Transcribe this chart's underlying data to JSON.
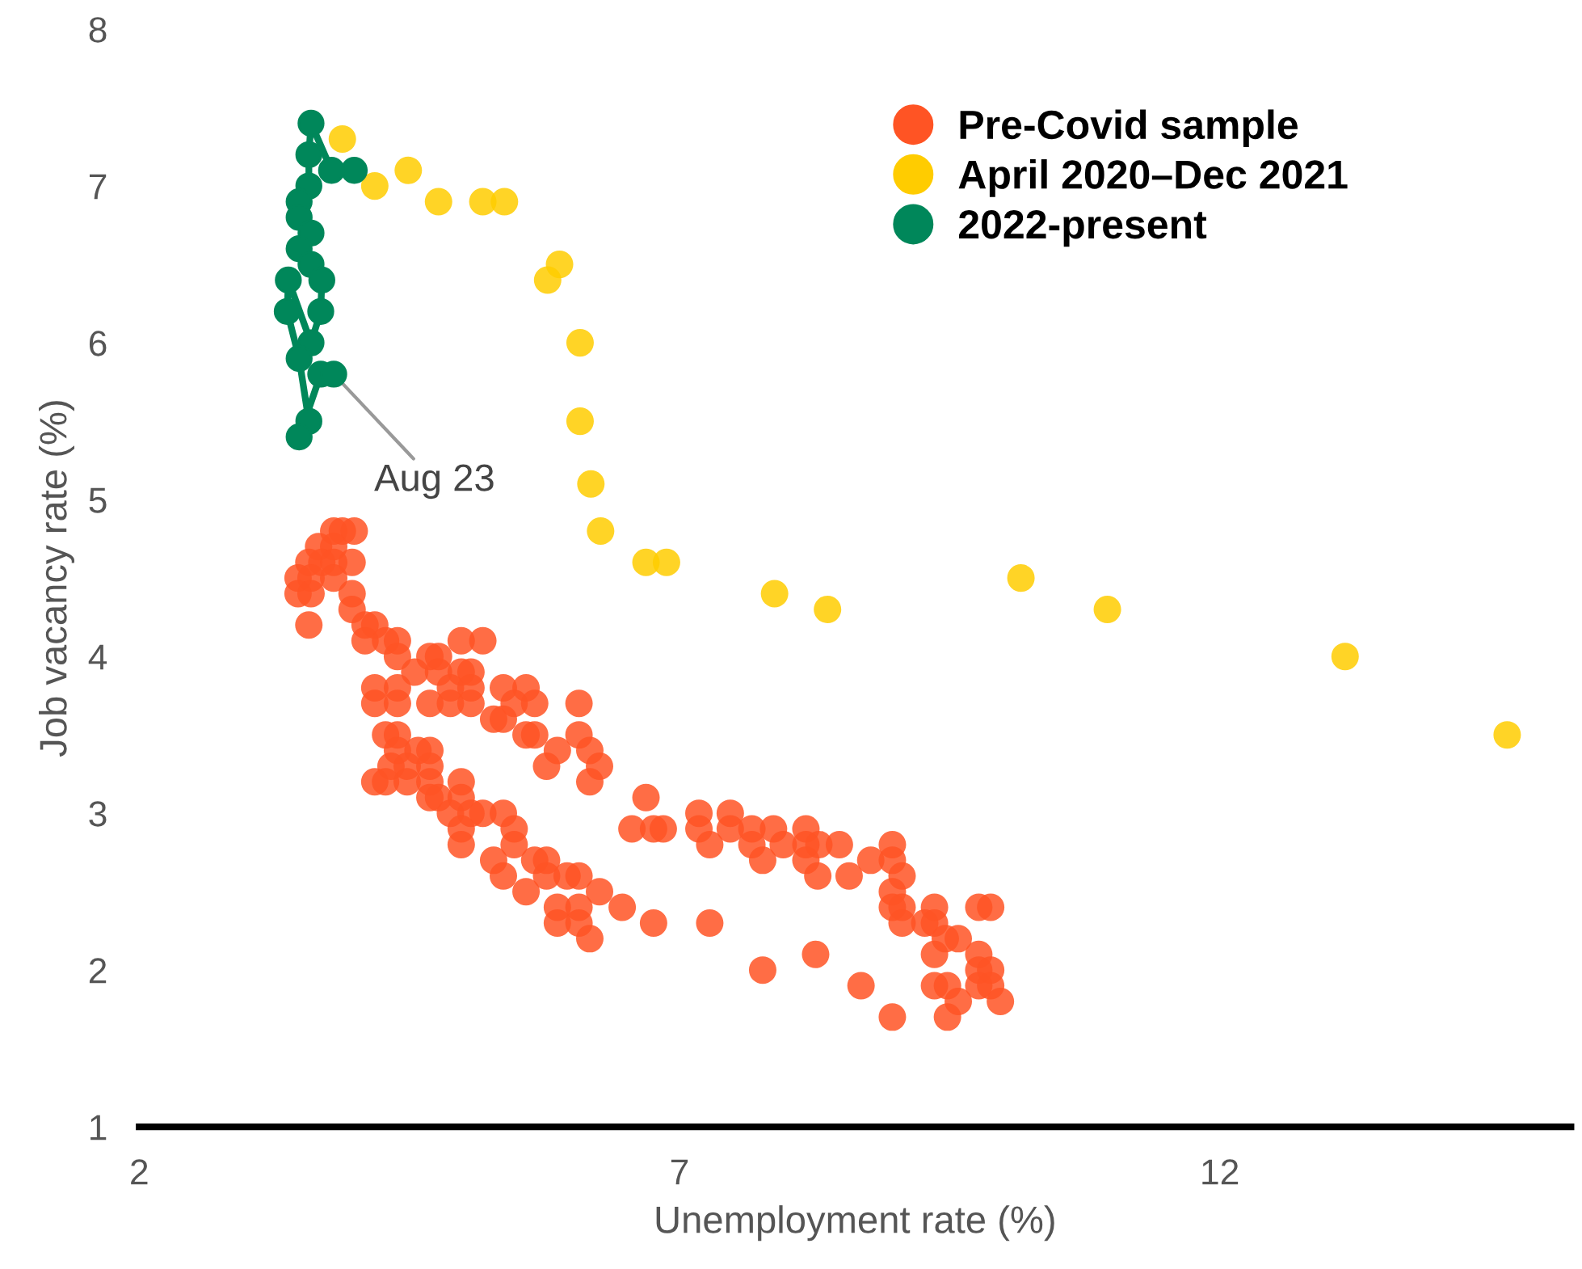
{
  "chart_data": {
    "type": "scatter",
    "xlabel": "Unemployment rate (%)",
    "ylabel": "Job vacancy rate (%)",
    "xlim": [
      2,
      15.25
    ],
    "ylim": [
      1,
      8
    ],
    "xticks": [
      2,
      7,
      12
    ],
    "yticks": [
      1,
      2,
      3,
      4,
      5,
      6,
      7,
      8
    ],
    "grid": false,
    "legend": "top right",
    "marker": "circle",
    "annotations": [
      {
        "text": "Aug 23",
        "x": 3.8,
        "y": 5.8
      }
    ],
    "series": [
      {
        "name": "Pre-Covid sample",
        "color": "#ff5424",
        "x": [
          3.8,
          3.88,
          3.99,
          3.66,
          3.8,
          3.57,
          3.69,
          3.8,
          3.97,
          3.47,
          3.59,
          3.8,
          3.47,
          3.59,
          3.97,
          3.97,
          3.57,
          4.09,
          4.18,
          4.09,
          4.28,
          4.39,
          4.39,
          4.98,
          5.18,
          4.69,
          4.77,
          4.55,
          4.77,
          4.98,
          5.07,
          4.18,
          4.39,
          4.88,
          5.07,
          4.18,
          4.39,
          4.69,
          4.88,
          5.07,
          5.37,
          5.58,
          5.47,
          5.66,
          6.07,
          5.28,
          5.37,
          5.58,
          5.66,
          6.07,
          5.87,
          6.17,
          5.77,
          6.26,
          6.17,
          4.28,
          4.39,
          4.39,
          4.58,
          4.69,
          4.33,
          4.48,
          4.69,
          4.18,
          4.28,
          4.48,
          4.69,
          4.98,
          6.69,
          4.77,
          4.98,
          5.07,
          5.37,
          6.56,
          6.76,
          4.69,
          4.88,
          5.18,
          4.98,
          5.47,
          4.98,
          5.28,
          5.47,
          5.37,
          5.66,
          5.77,
          5.58,
          5.77,
          5.96,
          6.07,
          5.87,
          6.07,
          6.26,
          6.47,
          5.87,
          6.07,
          6.17,
          6.76,
          6.85,
          7.18,
          7.18,
          7.28,
          7.47,
          7.47,
          7.67,
          7.87,
          7.67,
          7.77,
          7.96,
          8.17,
          8.17,
          8.17,
          8.29,
          8.48,
          8.28,
          8.57,
          8.77,
          8.97,
          8.97,
          9.06,
          8.97,
          8.97,
          9.06,
          9.06,
          9.27,
          9.36,
          9.36,
          9.46,
          9.58,
          9.36,
          9.77,
          9.88,
          9.77,
          9.77,
          9.88,
          9.77,
          9.88,
          9.97,
          9.36,
          9.48,
          9.58,
          9.48,
          8.97,
          8.68,
          8.26,
          7.77,
          7.28
        ],
        "values": [
          4.8,
          4.8,
          4.8,
          4.7,
          4.7,
          4.6,
          4.6,
          4.6,
          4.6,
          4.5,
          4.5,
          4.5,
          4.4,
          4.4,
          4.4,
          4.3,
          4.2,
          4.2,
          4.2,
          4.1,
          4.1,
          4.1,
          4.0,
          4.1,
          4.1,
          4.0,
          4.0,
          3.9,
          3.9,
          3.9,
          3.9,
          3.8,
          3.8,
          3.8,
          3.8,
          3.7,
          3.7,
          3.7,
          3.7,
          3.7,
          3.8,
          3.8,
          3.7,
          3.7,
          3.7,
          3.6,
          3.6,
          3.5,
          3.5,
          3.5,
          3.4,
          3.4,
          3.3,
          3.3,
          3.2,
          3.5,
          3.5,
          3.4,
          3.4,
          3.4,
          3.3,
          3.3,
          3.3,
          3.2,
          3.2,
          3.2,
          3.2,
          3.2,
          3.1,
          3.1,
          3.1,
          3.0,
          3.0,
          2.9,
          2.9,
          3.1,
          3.0,
          3.0,
          2.9,
          2.9,
          2.8,
          2.7,
          2.8,
          2.6,
          2.7,
          2.7,
          2.5,
          2.6,
          2.6,
          2.6,
          2.4,
          2.4,
          2.5,
          2.4,
          2.3,
          2.3,
          2.2,
          2.3,
          2.9,
          3.0,
          2.9,
          2.8,
          3.0,
          2.9,
          2.9,
          2.9,
          2.8,
          2.7,
          2.8,
          2.9,
          2.8,
          2.7,
          2.8,
          2.8,
          2.6,
          2.6,
          2.7,
          2.8,
          2.7,
          2.6,
          2.5,
          2.4,
          2.4,
          2.3,
          2.3,
          2.4,
          2.3,
          2.2,
          2.2,
          2.1,
          2.4,
          2.4,
          2.1,
          2.0,
          2.0,
          1.9,
          1.9,
          1.8,
          1.9,
          1.9,
          1.8,
          1.7,
          1.7,
          1.9,
          2.1,
          2.0,
          2.3
        ]
      },
      {
        "name": "April 2020–Dec 2021",
        "color": "#ffcc00",
        "x": [
          3.88,
          4.18,
          4.49,
          4.77,
          5.18,
          5.38,
          5.89,
          5.78,
          6.08,
          6.08,
          6.18,
          6.27,
          6.69,
          6.88,
          7.88,
          8.37,
          10.16,
          10.96,
          13.16,
          14.66
        ],
        "values": [
          7.3,
          7.0,
          7.1,
          6.9,
          6.9,
          6.9,
          6.5,
          6.4,
          6.0,
          5.5,
          5.1,
          4.8,
          4.6,
          4.6,
          4.4,
          4.3,
          4.5,
          4.3,
          4.0,
          3.5
        ]
      },
      {
        "name": "2022-present",
        "type": "line",
        "color": "#00875a",
        "x": [
          3.99,
          3.78,
          3.59,
          3.57,
          3.57,
          3.48,
          3.48,
          3.59,
          3.48,
          3.59,
          3.69,
          3.68,
          3.59,
          3.38,
          3.37,
          3.48,
          3.57,
          3.48,
          3.68,
          3.8
        ],
        "values": [
          7.1,
          7.1,
          7.4,
          7.2,
          7.0,
          6.9,
          6.8,
          6.7,
          6.6,
          6.5,
          6.4,
          6.2,
          6.0,
          6.4,
          6.2,
          5.9,
          5.5,
          5.4,
          5.8,
          5.8
        ]
      }
    ]
  }
}
